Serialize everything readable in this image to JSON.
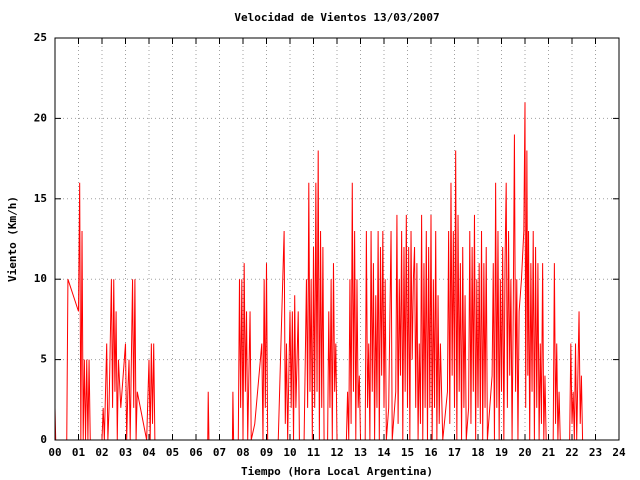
{
  "chart_data": {
    "type": "line",
    "title": "Velocidad de Vientos 13/03/2007",
    "xlabel": "Tiempo (Hora Local Argentina)",
    "ylabel": "Viento (Km/h)",
    "color": "#ff0000",
    "grid": true,
    "xlim": [
      0,
      24
    ],
    "ylim": [
      0,
      25
    ],
    "xticks": [
      {
        "value": 0,
        "label": "00"
      },
      {
        "value": 1,
        "label": "01"
      },
      {
        "value": 2,
        "label": "02"
      },
      {
        "value": 3,
        "label": "03"
      },
      {
        "value": 4,
        "label": "04"
      },
      {
        "value": 5,
        "label": "05"
      },
      {
        "value": 6,
        "label": "06"
      },
      {
        "value": 7,
        "label": "07"
      },
      {
        "value": 8,
        "label": "08"
      },
      {
        "value": 9,
        "label": "09"
      },
      10,
      11,
      12,
      13,
      14,
      15,
      16,
      17,
      18,
      19,
      20,
      21,
      22,
      23,
      24
    ],
    "yticks": [
      0,
      5,
      10,
      15,
      20,
      25
    ],
    "x": [
      0,
      0.03,
      0.5,
      0.55,
      1.0,
      1.05,
      1.1,
      1.15,
      1.2,
      1.25,
      1.3,
      1.35,
      1.4,
      1.45,
      1.5,
      2.0,
      2.05,
      2.1,
      2.2,
      2.25,
      2.3,
      2.4,
      2.45,
      2.5,
      2.55,
      2.6,
      2.65,
      2.7,
      2.8,
      3.0,
      3.05,
      3.1,
      3.15,
      3.2,
      3.25,
      3.3,
      3.35,
      3.4,
      3.45,
      3.5,
      3.9,
      4.0,
      4.05,
      4.1,
      4.15,
      4.2,
      4.25,
      6.5,
      6.52,
      6.55,
      7.55,
      7.57,
      7.6,
      7.8,
      7.85,
      7.9,
      7.95,
      8.0,
      8.05,
      8.1,
      8.15,
      8.2,
      8.3,
      8.35,
      8.5,
      8.8,
      8.85,
      8.9,
      8.95,
      9.0,
      9.05,
      9.5,
      9.75,
      9.8,
      9.85,
      9.9,
      10.0,
      10.05,
      10.1,
      10.15,
      10.2,
      10.25,
      10.35,
      10.4,
      10.6,
      10.7,
      10.75,
      10.8,
      10.85,
      10.9,
      10.95,
      11.0,
      11.05,
      11.1,
      11.15,
      11.2,
      11.25,
      11.3,
      11.35,
      11.4,
      11.45,
      11.6,
      11.65,
      11.7,
      11.75,
      11.8,
      11.85,
      11.9,
      11.95,
      12.0,
      12.4,
      12.45,
      12.5,
      12.55,
      12.6,
      12.65,
      12.7,
      12.75,
      12.8,
      12.85,
      12.9,
      12.95,
      13.0,
      13.2,
      13.25,
      13.3,
      13.35,
      13.4,
      13.45,
      13.5,
      13.55,
      13.6,
      13.65,
      13.7,
      13.75,
      13.8,
      13.85,
      13.9,
      13.95,
      14.0,
      14.05,
      14.1,
      14.2,
      14.3,
      14.35,
      14.5,
      14.55,
      14.6,
      14.65,
      14.7,
      14.75,
      14.8,
      14.85,
      14.9,
      14.95,
      15.0,
      15.05,
      15.1,
      15.15,
      15.2,
      15.25,
      15.3,
      15.35,
      15.4,
      15.45,
      15.5,
      15.55,
      15.6,
      15.65,
      15.7,
      15.75,
      15.8,
      15.85,
      15.9,
      15.95,
      16.0,
      16.05,
      16.1,
      16.15,
      16.2,
      16.25,
      16.3,
      16.35,
      16.4,
      16.5,
      16.7,
      16.75,
      16.8,
      16.85,
      16.9,
      16.95,
      17.0,
      17.05,
      17.1,
      17.15,
      17.2,
      17.25,
      17.3,
      17.35,
      17.4,
      17.45,
      17.5,
      17.6,
      17.65,
      17.7,
      17.75,
      17.8,
      17.85,
      17.9,
      17.95,
      18.0,
      18.05,
      18.1,
      18.15,
      18.2,
      18.25,
      18.3,
      18.35,
      18.4,
      18.5,
      18.6,
      18.65,
      18.7,
      18.75,
      18.8,
      18.85,
      18.9,
      18.95,
      19.0,
      19.05,
      19.1,
      19.15,
      19.2,
      19.25,
      19.3,
      19.35,
      19.4,
      19.45,
      19.5,
      19.55,
      19.6,
      19.65,
      19.7,
      19.75,
      19.85,
      19.95,
      20.0,
      20.03,
      20.08,
      20.12,
      20.15,
      20.2,
      20.25,
      20.3,
      20.35,
      20.4,
      20.45,
      20.5,
      20.55,
      20.6,
      20.65,
      20.7,
      20.75,
      20.8,
      20.85,
      20.9,
      21.2,
      21.25,
      21.3,
      21.35,
      21.4,
      21.45,
      21.5,
      21.9,
      21.95,
      22.0,
      22.05,
      22.1,
      22.15,
      22.2,
      22.3,
      22.35,
      22.4,
      22.45
    ],
    "values": [
      2,
      0,
      0,
      10,
      8,
      16,
      0,
      13,
      0,
      5,
      0,
      5,
      0,
      5,
      0,
      0,
      2,
      0,
      6,
      0,
      2,
      10,
      2,
      10,
      3,
      8,
      0,
      5,
      2,
      6,
      0,
      3,
      5,
      0,
      5,
      10,
      2,
      10,
      0,
      3,
      0,
      5,
      0,
      6,
      1,
      6,
      0,
      0,
      3,
      0,
      0,
      3,
      0,
      0,
      10,
      2,
      10,
      0,
      11,
      3,
      8,
      0,
      8,
      0,
      1,
      6,
      0,
      10,
      2,
      11,
      0,
      0,
      13,
      1,
      6,
      0,
      8,
      2,
      8,
      0,
      9,
      2,
      8,
      0,
      0,
      10,
      2,
      16,
      3,
      10,
      0,
      12,
      2,
      16,
      3,
      18,
      0,
      13,
      2,
      12,
      0,
      0,
      8,
      2,
      10,
      0,
      11,
      3,
      6,
      0,
      0,
      3,
      0,
      10,
      1,
      16,
      3,
      13,
      0,
      10,
      2,
      4,
      0,
      0,
      13,
      2,
      6,
      0,
      13,
      3,
      11,
      0,
      9,
      2,
      13,
      0,
      12,
      4,
      13,
      2,
      10,
      0,
      2,
      13,
      0,
      3,
      14,
      1,
      10,
      4,
      13,
      0,
      12,
      3,
      14,
      2,
      12,
      0,
      13,
      5,
      10,
      12,
      2,
      11,
      0,
      6,
      1,
      14,
      0,
      11,
      2,
      13,
      0,
      12,
      2,
      14,
      0,
      10,
      2,
      13,
      0,
      9,
      1,
      6,
      0,
      3,
      13,
      1,
      16,
      4,
      13,
      2,
      18,
      0,
      14,
      3,
      11,
      0,
      12,
      2,
      9,
      0,
      2,
      13,
      1,
      12,
      3,
      14,
      0,
      10,
      2,
      11,
      1,
      13,
      0,
      11,
      2,
      12,
      0,
      2,
      4,
      11,
      0,
      16,
      2,
      13,
      0,
      10,
      3,
      12,
      0,
      11,
      16,
      2,
      13,
      4,
      10,
      0,
      8,
      19,
      3,
      10,
      0,
      8,
      10,
      13,
      21,
      2,
      18,
      4,
      13,
      0,
      11,
      3,
      13,
      0,
      12,
      2,
      11,
      0,
      6,
      1,
      11,
      0,
      4,
      0,
      0,
      11,
      1,
      6,
      0,
      3,
      0,
      0,
      6,
      1,
      3,
      0,
      6,
      0,
      8,
      1,
      4,
      0
    ]
  }
}
